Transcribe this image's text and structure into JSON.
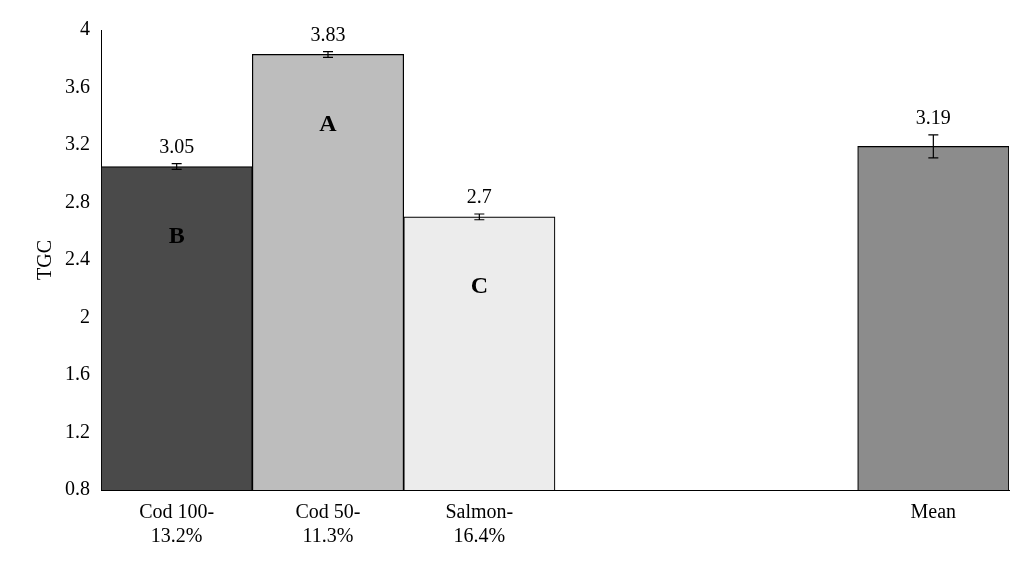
{
  "chart_data": {
    "type": "bar",
    "ylabel": "TGC",
    "categories": [
      "Cod 100-\n13.2%",
      "Cod 50-\n11.3%",
      "Salmon-\n16.4%",
      null,
      null,
      "Mean"
    ],
    "values": [
      3.05,
      3.83,
      2.7,
      null,
      null,
      3.19
    ],
    "colors": [
      "#4a4a4a",
      "#bdbdbd",
      "#ececec",
      "#ffffff",
      "#ffffff",
      "#8c8c8c"
    ],
    "errors": [
      0.02,
      0.02,
      0.02,
      null,
      null,
      0.08
    ],
    "data_labels": true,
    "ylim": [
      0.8,
      4
    ],
    "yticks": [
      0.8,
      1.2,
      1.6,
      2,
      2.4,
      2.8,
      3.2,
      3.6,
      4
    ],
    "grid": false,
    "legend": false,
    "annotations": [
      "B",
      "A",
      "C"
    ]
  }
}
